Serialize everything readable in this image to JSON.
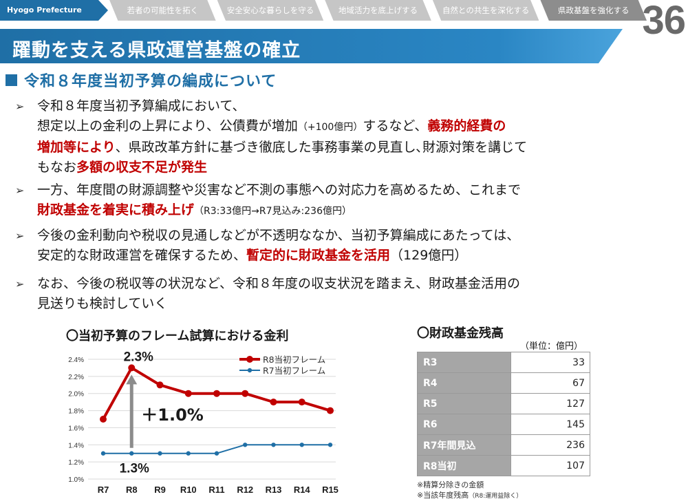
{
  "nav": {
    "brand": "Hyogo Prefecture",
    "tabs": [
      {
        "label": "若者の可能性を拓く",
        "active": false
      },
      {
        "label": "安全安心な暮らしを守る",
        "active": false
      },
      {
        "label": "地域活力を底上げする",
        "active": false
      },
      {
        "label": "自然との共生を深化する",
        "active": false
      },
      {
        "label": "県政基盤を強化する",
        "active": true
      }
    ],
    "page_number": "36"
  },
  "title": "躍動を支える県政運営基盤の確立",
  "section_heading": "令和８年度当初予算の編成について",
  "bullets": {
    "b1": {
      "l1": "令和８年度当初予算編成において、",
      "l2a": "想定以上の金利の上昇により、公債費が増加",
      "l2b": "（+100億円）",
      "l2c": "するなど、",
      "l2d": "義務的経費の",
      "l3a": "増加等により",
      "l3b": "、県政改革方針に基づき徹底した事務事業の見直し､財源対策を講じて",
      "l4a": "もなお",
      "l4b": "多額の収支不足が発生"
    },
    "b2": {
      "l1": "一方、年度間の財源調整や災害など不測の事態への対応力を高めるため、これまで",
      "l2a": "財政基金を着実に積み上げ",
      "l2b": "（R3:33億円→R7見込み:236億円）"
    },
    "b3": {
      "l1": "今後の金利動向や税収の見通しなどが不透明ななか、当初予算編成にあたっては、",
      "l2a": "安定的な財政運営を確保するため、",
      "l2b": "暫定的に財政基金を活用",
      "l2c": "（129億円）"
    },
    "b4": {
      "l1": "なお、今後の税収等の状況など、令和８年度の収支状況を踏まえ、財政基金活用の",
      "l2": "見送りも検討していく"
    }
  },
  "chart_title": "〇当初予算のフレーム試算における金利",
  "chart_data": {
    "type": "line",
    "categories": [
      "R7",
      "R8",
      "R9",
      "R10",
      "R11",
      "R12",
      "R13",
      "R14",
      "R15"
    ],
    "y_ticks": [
      "1.0%",
      "1.2%",
      "1.4%",
      "1.6%",
      "1.8%",
      "2.0%",
      "2.2%",
      "2.4%"
    ],
    "ylim": [
      1.0,
      2.4
    ],
    "grid": true,
    "legend_position": "top-right",
    "series": [
      {
        "name": "R8当初フレーム",
        "color": "#c00000",
        "values": [
          1.7,
          2.3,
          2.1,
          2.0,
          2.0,
          2.0,
          1.9,
          1.9,
          1.8
        ]
      },
      {
        "name": "R7当初フレーム",
        "color": "#1f6fa6",
        "values": [
          1.3,
          1.3,
          1.3,
          1.3,
          1.3,
          1.4,
          1.4,
          1.4,
          1.4
        ]
      }
    ],
    "annotations": {
      "peak_label": "2.3%",
      "base_label": "1.3%",
      "diff_label": "＋1.0%"
    }
  },
  "table": {
    "title": "〇財政基金残高",
    "unit": "（単位：億円）",
    "rows": [
      {
        "year": "R3",
        "value": "33"
      },
      {
        "year": "R4",
        "value": "67"
      },
      {
        "year": "R5",
        "value": "127"
      },
      {
        "year": "R6",
        "value": "145"
      },
      {
        "year": "R7年間見込",
        "value": "236"
      },
      {
        "year": "R8当初",
        "value": "107"
      }
    ],
    "note1": "※精算分除きの金額",
    "note2a": "※当該年度残高",
    "note2b": "（R8:運用益除く）"
  },
  "colors": {
    "accent": "#1f6fa6",
    "emphasis": "#c00000",
    "nav_tab": "#c6c6c6",
    "nav_tab_active": "#8d8d8d",
    "table_header": "#a6a6a6"
  }
}
